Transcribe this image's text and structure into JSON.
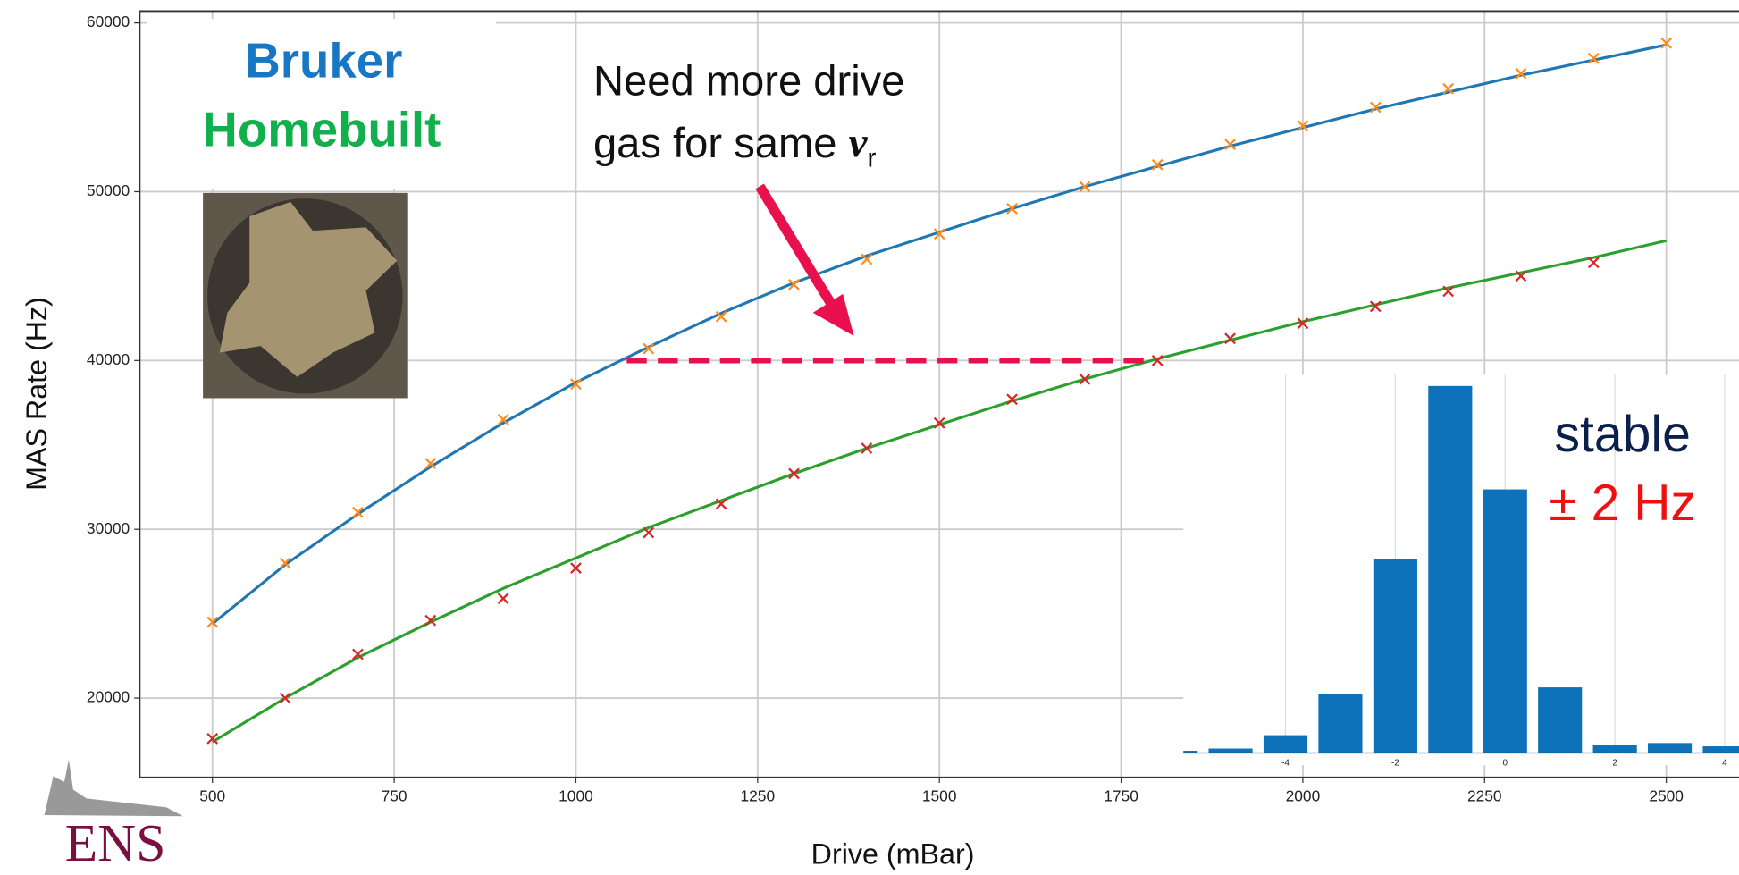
{
  "chart_data": [
    {
      "type": "scatter",
      "x_label": "Drive (mBar)",
      "y_label": "MAS Rate (Hz)",
      "xlim": [
        400,
        2600
      ],
      "ylim": [
        15300,
        60700
      ],
      "xticks": [
        500,
        750,
        1000,
        1250,
        1500,
        1750,
        2000,
        2250,
        2500
      ],
      "yticks": [
        20000,
        30000,
        40000,
        50000,
        60000
      ],
      "grid": true,
      "x": [
        500,
        600,
        700,
        800,
        900,
        1000,
        1100,
        1200,
        1300,
        1400,
        1500,
        1600,
        1700,
        1800,
        1900,
        2000,
        2100,
        2200,
        2300,
        2400,
        2500
      ],
      "series": [
        {
          "name": "Bruker",
          "color": "#1777c4",
          "marker_color": "#ff8c1a",
          "fit_color": "#1f77b4",
          "values": [
            24500,
            28000,
            31000,
            33900,
            36500,
            38600,
            40700,
            42600,
            44500,
            46000,
            47500,
            49000,
            50300,
            51600,
            52800,
            53900,
            55000,
            56100,
            57000,
            57900,
            58800
          ],
          "fit": [
            24400,
            27900,
            30900,
            33700,
            36300,
            38700,
            40800,
            42800,
            44600,
            46200,
            47600,
            49000,
            50300,
            51500,
            52700,
            53800,
            54900,
            55900,
            56900,
            57800,
            58700
          ]
        },
        {
          "name": "Homebuilt",
          "color": "#12b04c",
          "marker_color": "#d62728",
          "fit_color": "#2ca02c",
          "values": [
            17600,
            20000,
            22600,
            24600,
            25900,
            27700,
            29800,
            31500,
            33300,
            34800,
            36300,
            37700,
            38900,
            40000,
            41300,
            42200,
            43200,
            44100,
            45000,
            45800,
            null
          ],
          "fit": [
            17400,
            20000,
            22400,
            24500,
            26500,
            28300,
            30100,
            31700,
            33300,
            34800,
            36200,
            37600,
            38900,
            40100,
            41200,
            42300,
            43300,
            44300,
            45200,
            46100,
            47100
          ]
        }
      ],
      "annotation": {
        "lines": [
          "Need more drive",
          "gas for same "
        ],
        "symbol": "ν",
        "subscript": "r"
      },
      "reference_line": {
        "y": 40000,
        "x_start": 1070,
        "x_end": 1790,
        "color": "#e8114e"
      }
    },
    {
      "type": "bar",
      "title": "stable",
      "subtitle": "± 2 Hz",
      "x": [
        -6,
        -5,
        -4,
        -3,
        -2,
        -1,
        0,
        1,
        2,
        3,
        4
      ],
      "values": [
        2,
        4,
        16,
        53,
        174,
        330,
        237,
        59,
        7,
        9,
        6
      ],
      "color": "#0e72ba",
      "xlim": [
        -5.86,
        4.26
      ],
      "ylim": [
        0,
        340
      ],
      "xticks": [
        -4,
        -2,
        0,
        2,
        4
      ],
      "grid": true
    }
  ],
  "logo": "ENS"
}
